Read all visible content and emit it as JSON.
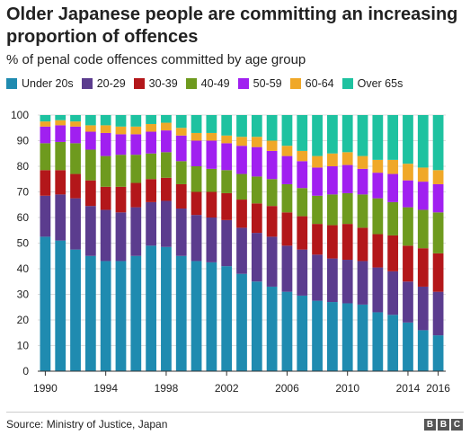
{
  "header": {
    "title": "Older Japanese people are committing an increasing proportion of offences",
    "subtitle": "% of penal code offences committed by age group"
  },
  "footer": {
    "source": "Source: Ministry of Justice, Japan",
    "logo_letters": [
      "B",
      "B",
      "C"
    ]
  },
  "chart_data": {
    "type": "bar",
    "stacked": true,
    "title": "Older Japanese people are committing an increasing proportion of offences",
    "subtitle": "% of penal code offences committed by age group",
    "xlabel": "",
    "ylabel": "",
    "ylim": [
      0,
      100
    ],
    "yticks": [
      0,
      10,
      20,
      30,
      40,
      50,
      60,
      70,
      80,
      90,
      100
    ],
    "xtick_labels": [
      "1990",
      "1994",
      "1998",
      "2002",
      "2006",
      "2010",
      "2014",
      "2016"
    ],
    "legend_position": "top",
    "grid": "horizontal",
    "categories": [
      1990,
      1991,
      1992,
      1993,
      1994,
      1995,
      1996,
      1997,
      1998,
      1999,
      2000,
      2001,
      2002,
      2003,
      2004,
      2005,
      2006,
      2007,
      2008,
      2009,
      2010,
      2011,
      2012,
      2013,
      2014,
      2015,
      2016
    ],
    "series": [
      {
        "name": "Under 20s",
        "color": "#1f8bb0",
        "values": [
          52.5,
          51,
          47.5,
          45,
          43,
          43,
          45,
          49,
          48.5,
          45,
          43,
          42.5,
          41,
          38,
          35,
          33,
          31,
          29.5,
          27.5,
          27,
          26.5,
          26,
          23,
          22,
          19,
          16,
          14
        ]
      },
      {
        "name": "20-29",
        "color": "#5b3c8e",
        "values": [
          16,
          18,
          20,
          19.5,
          20,
          19,
          19,
          17,
          18,
          18.5,
          18,
          17.5,
          18,
          18,
          19,
          19.5,
          18,
          18,
          18,
          17,
          17,
          17,
          17.5,
          17,
          16,
          17,
          17
        ]
      },
      {
        "name": "30-39",
        "color": "#b3171a",
        "values": [
          10,
          9.5,
          9.5,
          10,
          9,
          10,
          9.5,
          9,
          9,
          9.5,
          9,
          10,
          10.5,
          11,
          11.5,
          12,
          13,
          13,
          12,
          13,
          14,
          13,
          13,
          14,
          14,
          15,
          15
        ]
      },
      {
        "name": "40-49",
        "color": "#6e9a1e",
        "values": [
          10.5,
          11,
          12,
          12,
          12,
          12.5,
          11,
          10,
          10,
          9,
          10,
          9,
          9,
          10,
          10.5,
          10.5,
          11,
          11,
          11,
          12,
          12,
          13,
          14,
          13,
          15,
          15,
          16
        ]
      },
      {
        "name": "50-59",
        "color": "#a020f0",
        "values": [
          6.5,
          6.5,
          6.5,
          7,
          9,
          8,
          8,
          8.5,
          8.5,
          10,
          10,
          11,
          10.5,
          11,
          11.5,
          11,
          11,
          10.5,
          11,
          11,
          11,
          10,
          10,
          11,
          10.5,
          11,
          11
        ]
      },
      {
        "name": "60-64",
        "color": "#f0a828",
        "values": [
          2,
          2,
          2,
          2.5,
          3,
          3,
          3,
          3,
          3,
          3,
          3,
          3,
          3,
          3.5,
          4,
          4,
          4,
          4,
          4.5,
          5,
          5,
          5,
          5,
          5.5,
          6.5,
          5.5,
          5.5
        ]
      },
      {
        "name": "Over 65s",
        "color": "#1ec2a0",
        "values": [
          2.5,
          2,
          2.5,
          4,
          4,
          4.5,
          4.5,
          3.5,
          3,
          5,
          7,
          7,
          8,
          8.5,
          8.5,
          10,
          12,
          14,
          16,
          15,
          14.5,
          16,
          17.5,
          17.5,
          19,
          20.5,
          21.5
        ]
      }
    ]
  }
}
